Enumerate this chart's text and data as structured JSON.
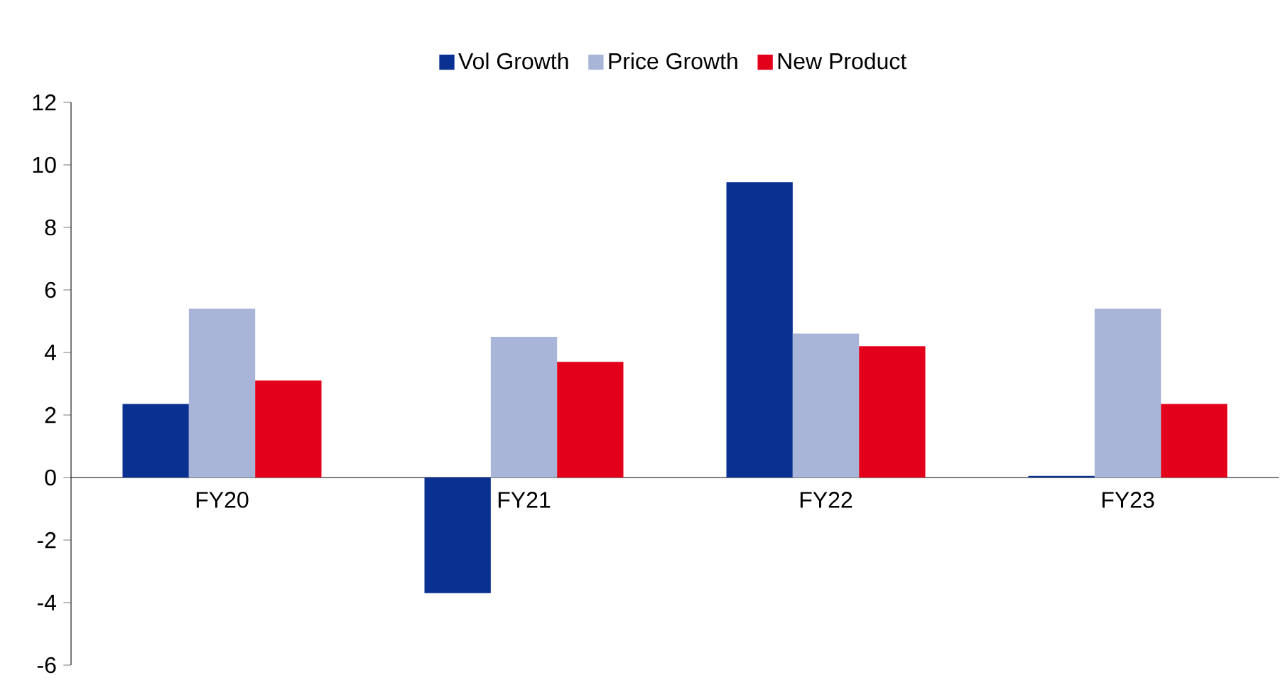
{
  "chart_data": {
    "type": "bar",
    "categories": [
      "FY20",
      "FY21",
      "FY22",
      "FY23"
    ],
    "series": [
      {
        "name": "Vol Growth",
        "color": "#0a3191",
        "values": [
          2.35,
          -3.7,
          9.45,
          0.05
        ]
      },
      {
        "name": "Price Growth",
        "color": "#a8b4d8",
        "values": [
          5.4,
          4.5,
          4.6,
          5.4
        ]
      },
      {
        "name": "New Product",
        "color": "#e3001b",
        "values": [
          3.1,
          3.7,
          4.2,
          2.35
        ]
      }
    ],
    "ylim": [
      -6,
      12
    ],
    "yticks": [
      -6,
      -4,
      -2,
      0,
      2,
      4,
      6,
      8,
      10,
      12
    ],
    "legend": "top"
  }
}
